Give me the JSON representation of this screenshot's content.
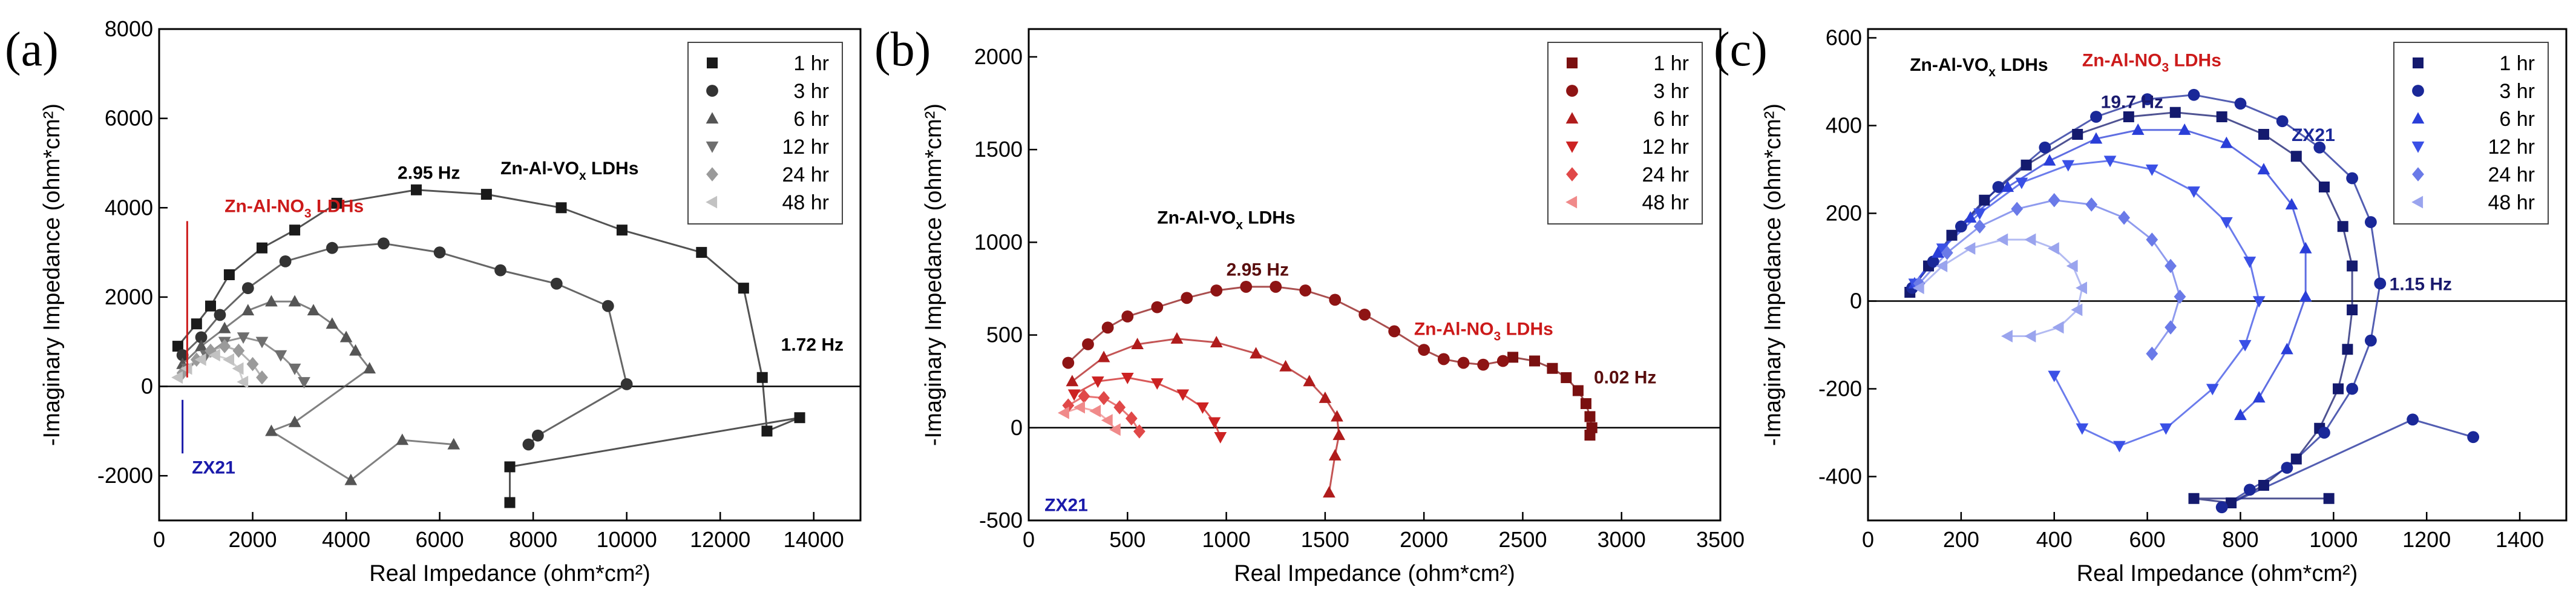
{
  "panels": [
    {
      "id": "a",
      "label": "(a)",
      "xlim": [
        0,
        15000
      ],
      "ylim": [
        -3000,
        8000
      ],
      "xticks": [
        0,
        2000,
        4000,
        6000,
        8000,
        10000,
        12000,
        14000
      ],
      "yticks": [
        -2000,
        0,
        2000,
        4000,
        6000,
        8000
      ],
      "xlabel": "Real Impedance (ohm*cm²)",
      "ylabel": "-Imaginary Impedance (ohm*cm²)",
      "legend": [
        "1 hr",
        "3 hr",
        "6 hr",
        "12 hr",
        "24 hr",
        "48 hr"
      ],
      "legend_colors": [
        "#1a1a1a",
        "#333333",
        "#555555",
        "#6e6e6e",
        "#9a9a9a",
        "#c2c2c2"
      ],
      "annotations": [
        {
          "text": "2.95 Hz",
          "color": "#000000",
          "x": 5100,
          "y": 4650
        },
        {
          "text": "Zn-Al-VOx LDHs",
          "color": "#000000",
          "x": 7300,
          "y": 4750
        },
        {
          "text": "1.72 Hz",
          "color": "#000000",
          "x": 13300,
          "y": 800
        },
        {
          "text": "Zn-Al-NO3 LDHs",
          "color": "#cc1a1a",
          "x": 1400,
          "y": 3900
        },
        {
          "text": "ZX21",
          "color": "#1a1aaa",
          "x": 700,
          "y": -1950
        }
      ]
    },
    {
      "id": "b",
      "label": "(b)",
      "xlim": [
        0,
        3500
      ],
      "ylim": [
        -500,
        2150
      ],
      "xticks": [
        0,
        500,
        1000,
        1500,
        2000,
        2500,
        3000,
        3500
      ],
      "yticks": [
        -500,
        0,
        500,
        1000,
        1500,
        2000
      ],
      "xlabel": "Real Impedance (ohm*cm²)",
      "ylabel": "-Imaginary Impedance (ohm*cm²)",
      "legend": [
        "1 hr",
        "3 hr",
        "6 hr",
        "12 hr",
        "24 hr",
        "48 hr"
      ],
      "legend_colors": [
        "#7a1010",
        "#8e1414",
        "#b01c1c",
        "#cc2222",
        "#e04848",
        "#f08a8a"
      ],
      "annotations": [
        {
          "text": "Zn-Al-VOx LDHs",
          "color": "#000000",
          "x": 650,
          "y": 1100
        },
        {
          "text": "2.95 Hz",
          "color": "#5a0e0e",
          "x": 1000,
          "y": 820
        },
        {
          "text": "Zn-Al-NO3 LDHs",
          "color": "#cc1a1a",
          "x": 1950,
          "y": 500
        },
        {
          "text": "0.02 Hz",
          "color": "#5a0e0e",
          "x": 2860,
          "y": 240
        },
        {
          "text": "ZX21",
          "color": "#1a1aaa",
          "x": 80,
          "y": -450
        }
      ]
    },
    {
      "id": "c",
      "label": "(c)",
      "xlim": [
        0,
        1500
      ],
      "ylim": [
        -500,
        620
      ],
      "xticks": [
        0,
        200,
        400,
        600,
        800,
        1000,
        1200,
        1400
      ],
      "yticks": [
        -400,
        -200,
        0,
        200,
        400,
        600
      ],
      "xlabel": "Real Impedance (ohm*cm²)",
      "ylabel": "-Imaginary Impedance (ohm*cm²)",
      "legend": [
        "1 hr",
        "3 hr",
        "6 hr",
        "12 hr",
        "24 hr",
        "48 hr"
      ],
      "legend_colors": [
        "#141a6e",
        "#1a2898",
        "#2a3ed8",
        "#3a50e6",
        "#6a7ae8",
        "#9aa4ee"
      ],
      "annotations": [
        {
          "text": "Zn-Al-VOx LDHs",
          "color": "#000000",
          "x": 90,
          "y": 525
        },
        {
          "text": "Zn-Al-NO3 LDHs",
          "color": "#cc1a1a",
          "x": 460,
          "y": 535
        },
        {
          "text": "19.7 Hz",
          "color": "#1a1a6e",
          "x": 500,
          "y": 440
        },
        {
          "text": "ZX21",
          "color": "#1a2898",
          "x": 910,
          "y": 365
        },
        {
          "text": "1.15 Hz",
          "color": "#1a1a6e",
          "x": 1120,
          "y": 25
        }
      ]
    }
  ],
  "chart_data": [
    {
      "type": "scatter",
      "panel": "a",
      "title": "(a)",
      "xlabel": "Real Impedance (ohm*cm²)",
      "ylabel": "-Imaginary Impedance (ohm*cm²)",
      "xlim": [
        0,
        15000
      ],
      "ylim": [
        -3000,
        8000
      ],
      "series": [
        {
          "name": "1 hr",
          "marker": "square",
          "color": "#1a1a1a",
          "x": [
            400,
            800,
            1100,
            1500,
            2200,
            2900,
            3800,
            5500,
            7000,
            8600,
            9900,
            11600,
            12500,
            12900,
            13000,
            13700,
            7500,
            7500
          ],
          "y": [
            900,
            1400,
            1800,
            2500,
            3100,
            3500,
            4100,
            4400,
            4300,
            4000,
            3500,
            3000,
            2200,
            200,
            -1000,
            -700,
            -1800,
            -2600
          ]
        },
        {
          "name": "3 hr",
          "marker": "circle",
          "color": "#333333",
          "x": [
            500,
            900,
            1300,
            1900,
            2700,
            3700,
            4800,
            6000,
            7300,
            8500,
            9600,
            10000,
            8100,
            7900
          ],
          "y": [
            700,
            1100,
            1600,
            2200,
            2800,
            3100,
            3200,
            3000,
            2600,
            2300,
            1800,
            50,
            -1100,
            -1300
          ]
        },
        {
          "name": "6 hr",
          "marker": "triangle-up",
          "color": "#555555",
          "x": [
            500,
            900,
            1400,
            1900,
            2400,
            2900,
            3300,
            3700,
            4000,
            4200,
            4500,
            2900,
            2400,
            4100,
            5200,
            6300
          ],
          "y": [
            500,
            900,
            1300,
            1700,
            1900,
            1900,
            1700,
            1400,
            1100,
            800,
            400,
            -800,
            -1000,
            -2100,
            -1200,
            -1300
          ]
        },
        {
          "name": "12 hr",
          "marker": "triangle-down",
          "color": "#6e6e6e",
          "x": [
            600,
            1000,
            1400,
            1800,
            2200,
            2600,
            2900,
            3100
          ],
          "y": [
            400,
            700,
            1000,
            1100,
            1000,
            700,
            400,
            100
          ]
        },
        {
          "name": "24 hr",
          "marker": "diamond",
          "color": "#9a9a9a",
          "x": [
            500,
            800,
            1100,
            1400,
            1700,
            2000,
            2200
          ],
          "y": [
            300,
            600,
            800,
            900,
            800,
            500,
            200
          ]
        },
        {
          "name": "48 hr",
          "marker": "triangle-left",
          "color": "#c2c2c2",
          "x": [
            400,
            600,
            900,
            1200,
            1500,
            1700,
            1800
          ],
          "y": [
            200,
            400,
            600,
            700,
            600,
            400,
            100
          ]
        }
      ]
    },
    {
      "type": "scatter",
      "panel": "b",
      "title": "(b)",
      "xlabel": "Real Impedance (ohm*cm²)",
      "ylabel": "-Imaginary Impedance (ohm*cm²)",
      "xlim": [
        0,
        3500
      ],
      "ylim": [
        -500,
        2150
      ],
      "series": [
        {
          "name": "1 hr",
          "marker": "square",
          "color": "#7a1010",
          "x": [
            2450,
            2560,
            2650,
            2720,
            2780,
            2820,
            2840,
            2850,
            2840
          ],
          "y": [
            380,
            360,
            320,
            270,
            200,
            130,
            60,
            0,
            -40
          ]
        },
        {
          "name": "3 hr",
          "marker": "circle",
          "color": "#8e1414",
          "x": [
            200,
            300,
            400,
            500,
            650,
            800,
            950,
            1100,
            1250,
            1400,
            1550,
            1700,
            1850,
            2000,
            2100,
            2200,
            2300,
            2400
          ],
          "y": [
            350,
            450,
            540,
            600,
            650,
            700,
            740,
            760,
            760,
            740,
            690,
            610,
            520,
            420,
            370,
            350,
            340,
            360
          ]
        },
        {
          "name": "6 hr",
          "marker": "triangle-up",
          "color": "#b01c1c",
          "x": [
            220,
            380,
            550,
            750,
            950,
            1150,
            1300,
            1420,
            1500,
            1560,
            1570,
            1550,
            1520
          ],
          "y": [
            250,
            380,
            450,
            480,
            460,
            400,
            330,
            250,
            160,
            60,
            -40,
            -150,
            -350
          ]
        },
        {
          "name": "12 hr",
          "marker": "triangle-down",
          "color": "#cc2222",
          "x": [
            230,
            350,
            500,
            650,
            780,
            880,
            940,
            970
          ],
          "y": [
            180,
            250,
            270,
            240,
            180,
            110,
            30,
            -50
          ]
        },
        {
          "name": "24 hr",
          "marker": "diamond",
          "color": "#e04848",
          "x": [
            200,
            280,
            380,
            460,
            520,
            560
          ],
          "y": [
            120,
            170,
            160,
            110,
            50,
            -20
          ]
        },
        {
          "name": "48 hr",
          "marker": "triangle-left",
          "color": "#f08a8a",
          "x": [
            180,
            260,
            340,
            400,
            440
          ],
          "y": [
            80,
            110,
            90,
            40,
            -10
          ]
        }
      ]
    },
    {
      "type": "scatter",
      "panel": "c",
      "title": "(c)",
      "xlabel": "Real Impedance (ohm*cm²)",
      "ylabel": "-Imaginary Impedance (ohm*cm²)",
      "xlim": [
        0,
        1500
      ],
      "ylim": [
        -500,
        620
      ],
      "series": [
        {
          "name": "1 hr",
          "marker": "square",
          "color": "#141a6e",
          "x": [
            90,
            130,
            180,
            250,
            340,
            450,
            560,
            660,
            760,
            850,
            920,
            980,
            1020,
            1040,
            1040,
            1030,
            1010,
            970,
            920,
            850,
            780,
            700,
            990
          ],
          "y": [
            20,
            80,
            150,
            230,
            310,
            380,
            420,
            430,
            420,
            380,
            330,
            260,
            170,
            80,
            -20,
            -110,
            -200,
            -290,
            -360,
            -420,
            -460,
            -450,
            -450
          ]
        },
        {
          "name": "3 hr",
          "marker": "circle",
          "color": "#1a2898",
          "x": [
            95,
            140,
            200,
            280,
            380,
            490,
            600,
            700,
            800,
            890,
            970,
            1040,
            1080,
            1100,
            1080,
            1040,
            980,
            900,
            820,
            760,
            1170,
            1300
          ],
          "y": [
            30,
            90,
            170,
            260,
            350,
            420,
            460,
            470,
            450,
            410,
            350,
            280,
            180,
            40,
            -90,
            -200,
            -300,
            -380,
            -430,
            -470,
            -270,
            -310
          ]
        },
        {
          "name": "6 hr",
          "marker": "triangle-up",
          "color": "#2a3ed8",
          "x": [
            100,
            150,
            220,
            300,
            390,
            490,
            580,
            680,
            770,
            850,
            910,
            940,
            940,
            900,
            840,
            800
          ],
          "y": [
            40,
            110,
            190,
            260,
            320,
            370,
            390,
            390,
            360,
            300,
            220,
            120,
            10,
            -110,
            -220,
            -260
          ]
        },
        {
          "name": "12 hr",
          "marker": "triangle-down",
          "color": "#3a50e6",
          "x": [
            100,
            160,
            240,
            330,
            430,
            520,
            610,
            700,
            770,
            820,
            840,
            810,
            740,
            640,
            540,
            460,
            400
          ],
          "y": [
            40,
            120,
            200,
            270,
            310,
            320,
            300,
            250,
            180,
            90,
            0,
            -100,
            -200,
            -290,
            -330,
            -290,
            -170
          ]
        },
        {
          "name": "24 hr",
          "marker": "diamond",
          "color": "#6a7ae8",
          "x": [
            110,
            170,
            240,
            320,
            400,
            480,
            550,
            610,
            650,
            670,
            650,
            610
          ],
          "y": [
            40,
            110,
            170,
            210,
            230,
            220,
            190,
            140,
            80,
            10,
            -60,
            -120
          ]
        },
        {
          "name": "48 hr",
          "marker": "triangle-left",
          "color": "#9aa4ee",
          "x": [
            110,
            160,
            220,
            290,
            350,
            400,
            440,
            460,
            450,
            410,
            350,
            300
          ],
          "y": [
            30,
            80,
            120,
            140,
            140,
            120,
            80,
            30,
            -20,
            -60,
            -80,
            -80
          ]
        }
      ]
    }
  ]
}
